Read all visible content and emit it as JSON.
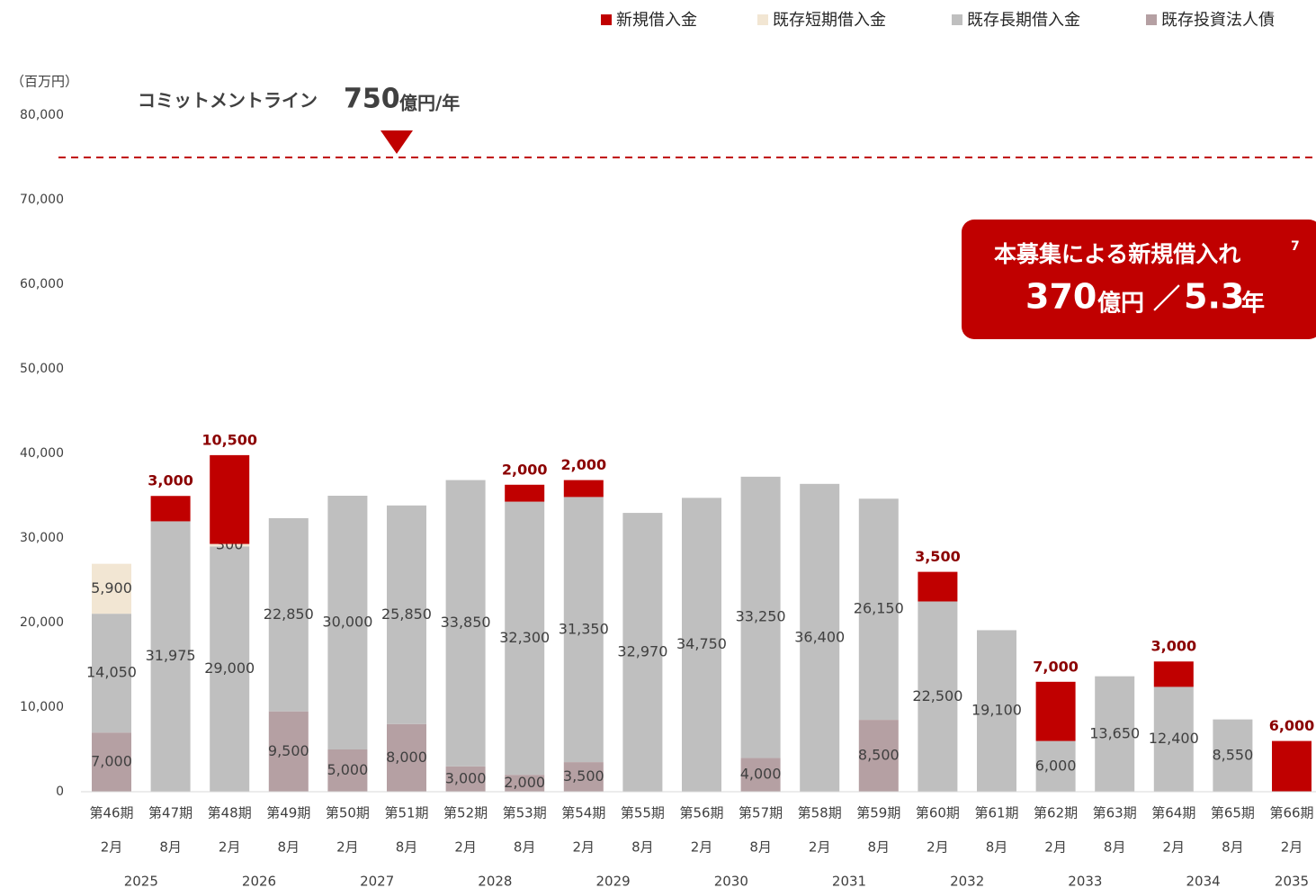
{
  "chart_data": {
    "type": "stacked_bar",
    "unit_label": "（百万円）",
    "categories": [
      "第46期",
      "第47期",
      "第48期",
      "第49期",
      "第50期",
      "第51期",
      "第52期",
      "第53期",
      "第54期",
      "第55期",
      "第56期",
      "第57期",
      "第58期",
      "第59期",
      "第60期",
      "第61期",
      "第62期",
      "第63期",
      "第64期",
      "第65期",
      "第66期"
    ],
    "months": [
      "2月",
      "8月",
      "2月",
      "8月",
      "2月",
      "8月",
      "2月",
      "8月",
      "2月",
      "8月",
      "2月",
      "8月",
      "2月",
      "8月",
      "2月",
      "8月",
      "2月",
      "8月",
      "2月",
      "8月",
      "2月"
    ],
    "years": [
      "2025",
      "2026",
      "2027",
      "2028",
      "2029",
      "2030",
      "2031",
      "2032",
      "2033",
      "2034",
      "2035"
    ],
    "series": [
      {
        "name": "新規借入金",
        "color": "#c00000",
        "values": [
          null,
          3000,
          10500,
          null,
          null,
          null,
          null,
          2000,
          2000,
          null,
          null,
          null,
          null,
          null,
          3500,
          null,
          7000,
          null,
          3000,
          null,
          6000
        ],
        "value_labels": [
          null,
          "3,000",
          "10,500",
          null,
          null,
          null,
          null,
          "2,000",
          "2,000",
          null,
          null,
          null,
          null,
          null,
          "3,500",
          null,
          "7,000",
          null,
          "3,000",
          null,
          "6,000"
        ]
      },
      {
        "name": "既存短期借入金",
        "color": "#f2e6d3",
        "values": [
          5900,
          null,
          300,
          null,
          null,
          null,
          null,
          null,
          null,
          null,
          null,
          null,
          null,
          null,
          null,
          null,
          null,
          null,
          null,
          null,
          null
        ],
        "value_labels": [
          "5,900",
          null,
          "300",
          null,
          null,
          null,
          null,
          null,
          null,
          null,
          null,
          null,
          null,
          null,
          null,
          null,
          null,
          null,
          null,
          null,
          null
        ]
      },
      {
        "name": "既存長期借入金",
        "color": "#bfbfbf",
        "values": [
          14050,
          31975,
          29000,
          22850,
          30000,
          25850,
          33850,
          32300,
          31350,
          32970,
          34750,
          33250,
          36400,
          26150,
          22500,
          19100,
          6000,
          13650,
          12400,
          8550,
          null
        ],
        "value_labels": [
          "14,050",
          "31,975",
          "29,000",
          "22,850",
          "30,000",
          "25,850",
          "33,850",
          "32,300",
          "31,350",
          "32,970",
          "34,750",
          "33,250",
          "36,400",
          "26,150",
          "22,500",
          "19,100",
          "6,000",
          "13,650",
          "12,400",
          "8,550",
          null
        ]
      },
      {
        "name": "既存投資法人債",
        "color": "#b5a0a3",
        "values": [
          7000,
          null,
          null,
          9500,
          5000,
          8000,
          3000,
          2000,
          3500,
          null,
          null,
          4000,
          null,
          8500,
          null,
          null,
          null,
          null,
          null,
          null,
          null
        ],
        "value_labels": [
          "7,000",
          null,
          null,
          "9,500",
          "5,000",
          "8,000",
          "3,000",
          "2,000",
          "3,500",
          null,
          null,
          "4,000",
          null,
          "8,500",
          null,
          null,
          null,
          null,
          null,
          null,
          null
        ]
      }
    ],
    "ylim": [
      0,
      80000
    ],
    "yticks": [
      0,
      {
        "value": 10000,
        "label": "10,000"
      },
      {
        "value": 20000,
        "label": "20,000"
      },
      {
        "value": 30000,
        "label": "30,000"
      },
      {
        "value": 40000,
        "label": "40,000"
      },
      {
        "value": 50000,
        "label": "50,000"
      },
      {
        "value": 60000,
        "label": "60,000"
      },
      {
        "value": 70000,
        "label": "70,000"
      },
      {
        "value": 80000,
        "label": "80,000"
      }
    ],
    "commitment_line": {
      "label": "コミットメントライン",
      "amount": "750",
      "unit": "億円/年",
      "value": 75000
    },
    "callout": {
      "title": "本募集による新規借入れ",
      "note": "7",
      "amount": "370",
      "amount_unit": "億円",
      "separator": "／",
      "years": "5.3",
      "years_unit": "年"
    }
  }
}
